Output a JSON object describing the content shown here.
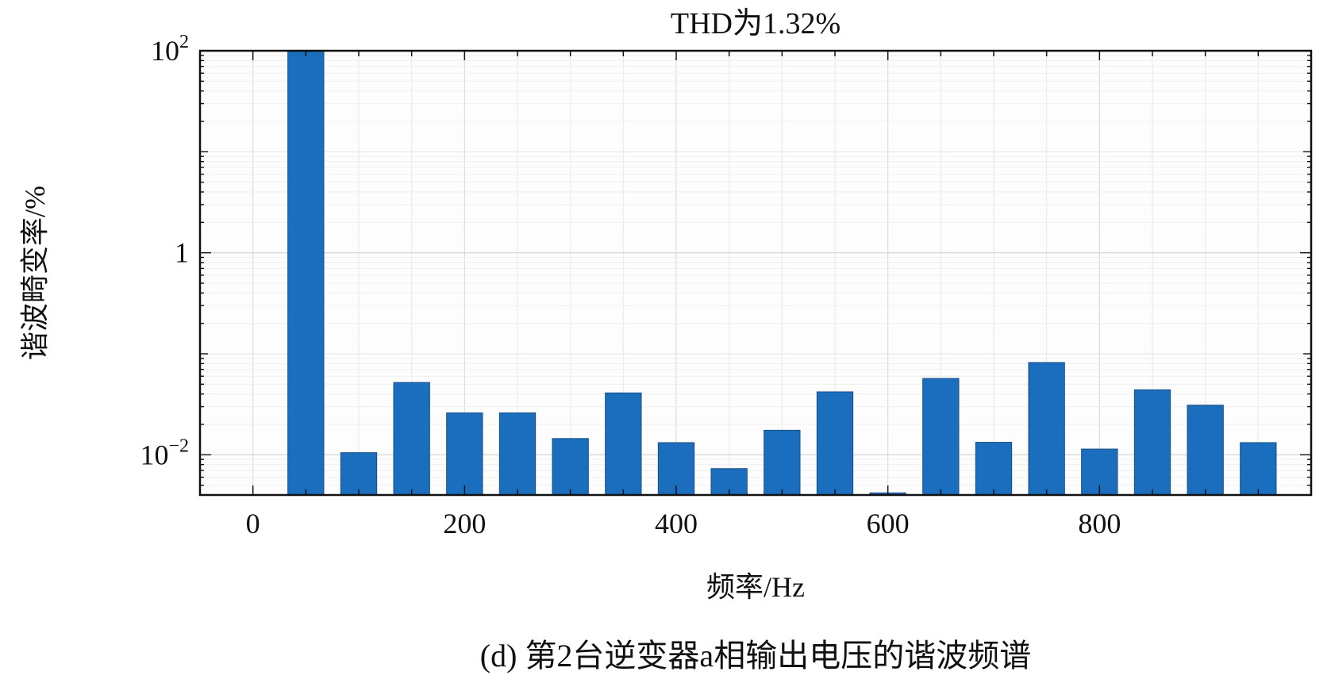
{
  "chart_data": {
    "type": "bar",
    "title": "THD为1.32%",
    "xlabel": "频率/Hz",
    "ylabel": "谐波畸变率/%",
    "caption": "(d) 第2台逆变器a相输出电压的谐波频谱",
    "y_scale": "log",
    "xlim": [
      -50,
      1000
    ],
    "ylim": [
      0.004,
      100
    ],
    "x_ticks": [
      0,
      200,
      400,
      600,
      800
    ],
    "y_ticks": [
      {
        "value": 0.01,
        "base": "10",
        "exp": "−2"
      },
      {
        "value": 1,
        "label": "1"
      },
      {
        "value": 100,
        "base": "10",
        "exp": "2"
      }
    ],
    "grid": true,
    "bar_width": 25,
    "bar_color": "#1a6ebd",
    "x": [
      50,
      100,
      150,
      200,
      250,
      300,
      350,
      400,
      450,
      500,
      550,
      600,
      650,
      700,
      750,
      800,
      850,
      900,
      950
    ],
    "values": [
      100,
      0.0105,
      0.052,
      0.026,
      0.026,
      0.0145,
      0.041,
      0.0132,
      0.0073,
      0.0175,
      0.042,
      0.0042,
      0.057,
      0.0133,
      0.082,
      0.0114,
      0.044,
      0.031,
      0.0132
    ]
  }
}
